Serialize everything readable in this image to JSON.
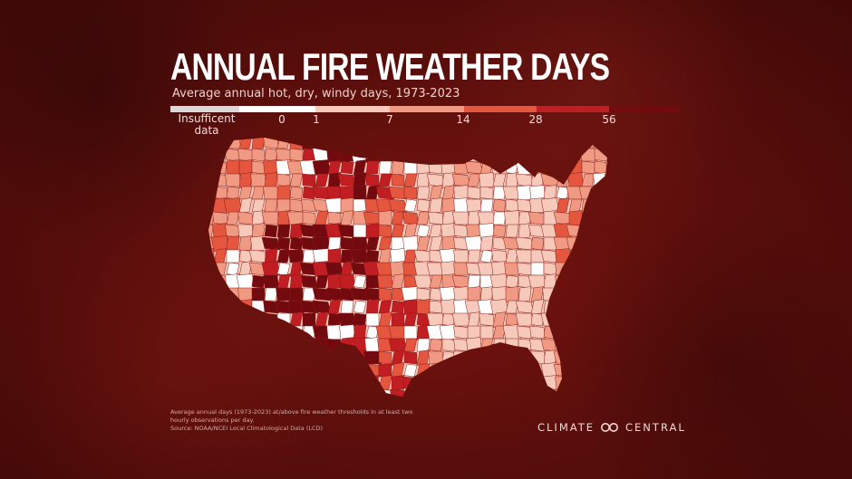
{
  "title": "ANNUAL FIRE WEATHER DAYS",
  "subtitle": "Average annual hot, dry, windy days, 1973-2023",
  "legend": {
    "insufficient_label": "Insufficent data",
    "ticks": [
      "0",
      "1",
      "7",
      "14",
      "28",
      "56"
    ],
    "colors": {
      "insufficient": "#d9d9d9",
      "zero": "#ffffff",
      "b1_7": "#f6c9bb",
      "b7_14": "#f19a83",
      "b14_28": "#e5563f",
      "b28_56": "#c01e22",
      "b56_plus": "#720a10"
    }
  },
  "footnote": {
    "line1": "Average annual days (1973-2023) at/above fire weather thresholds in at least two",
    "line2": "hourly observations per day.",
    "line3": "Source: NOAA/NCEI Local Climatological Data (LCD)"
  },
  "brand": {
    "name_left": "CLIMATE",
    "name_right": "CENTRAL",
    "logo_icon": "infinity-logo-icon"
  }
}
